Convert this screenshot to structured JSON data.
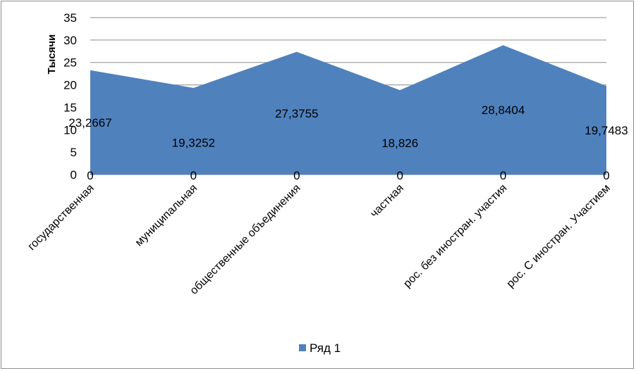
{
  "chart_data": {
    "type": "area",
    "categories": [
      "государственная",
      "муниципальная",
      "общественные объединения",
      "частная",
      "рос. без иностран. участия",
      "рос. С иностран. Участием"
    ],
    "series": [
      {
        "name": "Ряд 1",
        "values": [
          23.2667,
          19.3252,
          27.3755,
          18.826,
          28.8404,
          19.7483
        ],
        "value_labels": [
          "23,2667",
          "19,3252",
          "27,3755",
          "18,826",
          "28,8404",
          "19,7483"
        ],
        "color": "#4f81bd"
      },
      {
        "name": "",
        "values": [
          0,
          0,
          0,
          0,
          0,
          0
        ],
        "value_labels": [
          "0",
          "0",
          "0",
          "0",
          "0",
          "0"
        ]
      }
    ],
    "ylabel": "Тысячи",
    "xlabel": "",
    "ylim": [
      0,
      35
    ],
    "yticks": [
      "0",
      "5",
      "10",
      "15",
      "20",
      "25",
      "30",
      "35"
    ],
    "grid": true,
    "legend": "bottom"
  }
}
